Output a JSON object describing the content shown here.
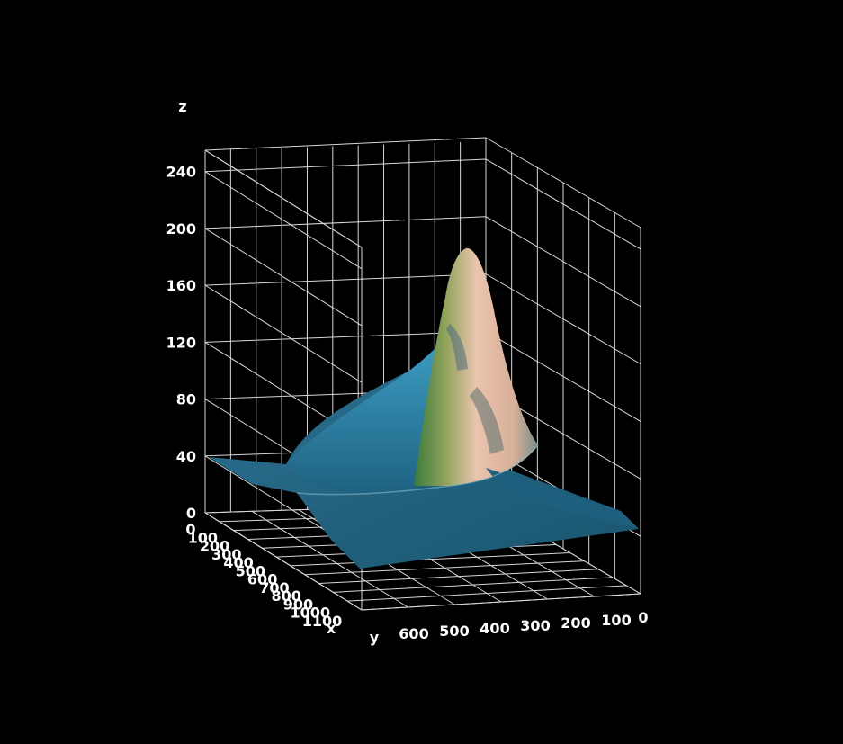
{
  "chart_data": {
    "type": "surface",
    "xlabel": "x",
    "ylabel": "y",
    "zlabel": "z",
    "z_ticks": [
      0,
      40,
      80,
      120,
      160,
      200,
      240
    ],
    "y_ticks": [
      600,
      500,
      400,
      300,
      200,
      100,
      0
    ],
    "x_ticks": [
      0,
      100,
      200,
      300,
      400,
      500,
      600,
      700,
      800,
      900,
      1000,
      1100
    ],
    "zlim": [
      0,
      255
    ],
    "grid": true,
    "surface": {
      "description": "textured height surface with a single sharp peak",
      "peak_z": 185,
      "base_z": 5,
      "secondary_ridge_z": 40,
      "colors": {
        "low": "#1f5f7e",
        "mid": "#2f87a8",
        "high": "#e8c4ad",
        "peak": "#f3d9c8",
        "green": "#5a8a3a"
      }
    }
  }
}
